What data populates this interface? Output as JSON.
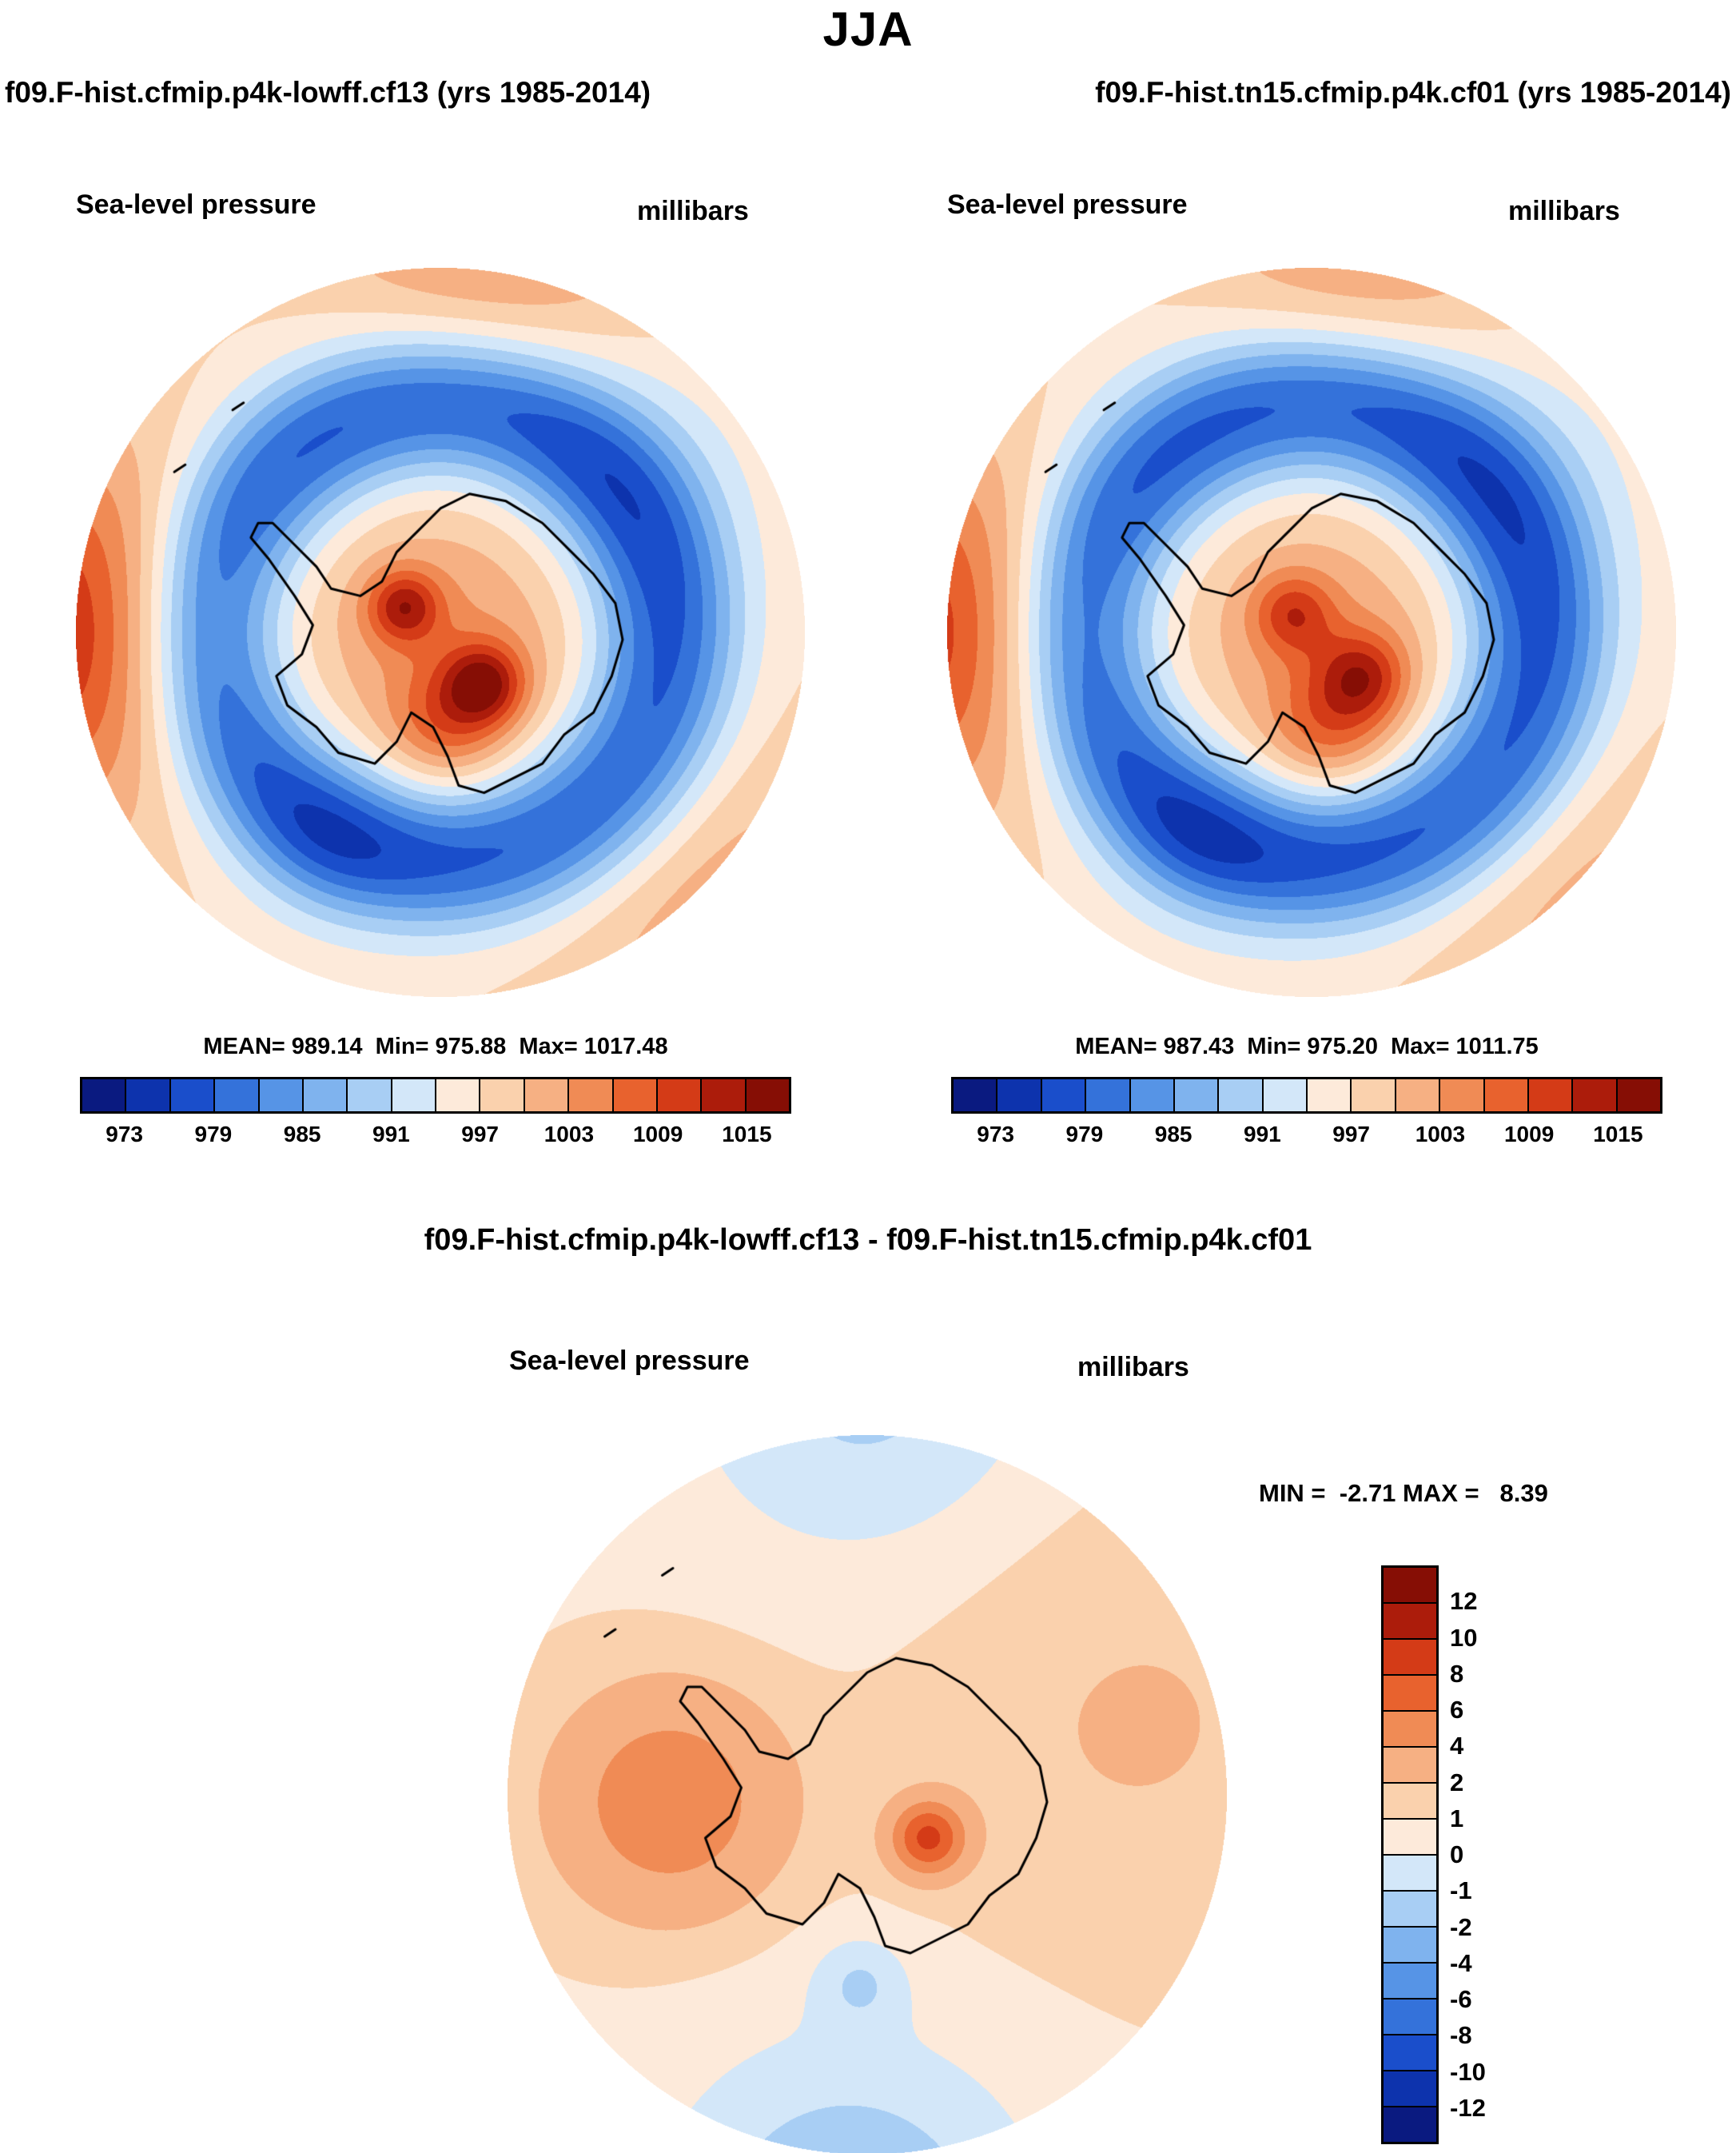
{
  "page": {
    "title": "JJA",
    "header_left": "f09.F-hist.cfmip.p4k-lowff.cf13 (yrs 1985-2014)",
    "header_right": "f09.F-hist.tn15.cfmip.p4k.cf01 (yrs 1985-2014)",
    "diff_title": "f09.F-hist.cfmip.p4k-lowff.cf13 - f09.F-hist.tn15.cfmip.p4k.cf01"
  },
  "chart_data": [
    {
      "type": "heatmap",
      "subtype": "south-polar-stereographic-contour-map",
      "title": "Sea-level pressure",
      "units": "millibars",
      "dataset": "f09.F-hist.cfmip.p4k-lowff.cf13",
      "years": "1985-2014",
      "stats": {
        "mean": 989.14,
        "min": 975.88,
        "max": 1017.48
      },
      "stats_label": "MEAN= 989.14  Min= 975.88  Max= 1017.48",
      "colorbar": {
        "orientation": "horizontal",
        "tick_labels": [
          "973",
          "979",
          "985",
          "991",
          "997",
          "1003",
          "1009",
          "1015"
        ],
        "levels": [
          970,
          973,
          976,
          979,
          982,
          985,
          988,
          991,
          994,
          997,
          1000,
          1003,
          1006,
          1009,
          1012,
          1015,
          1018
        ],
        "colors": [
          "#0a1a80",
          "#0d33ad",
          "#1a4ecb",
          "#3472da",
          "#5694e6",
          "#7fb3ee",
          "#a8cef4",
          "#d3e7f9",
          "#fdeada",
          "#fad1ad",
          "#f6b083",
          "#f08b55",
          "#e8622e",
          "#d43b17",
          "#ac1c0b",
          "#860e05"
        ]
      },
      "field_model": {
        "base": 997,
        "bumps": [
          {
            "kind": "ring",
            "r0": 0.62,
            "sigma": 0.2,
            "amp": -19
          },
          {
            "kind": "spot",
            "x": 0.02,
            "y": -0.02,
            "sigma": 0.38,
            "amp": 6
          },
          {
            "kind": "spot",
            "x": -0.1,
            "y": 0.07,
            "sigma": 0.1,
            "amp": 13
          },
          {
            "kind": "spot",
            "x": 0.12,
            "y": -0.14,
            "sigma": 0.11,
            "amp": 14
          },
          {
            "kind": "spot",
            "x": 0.02,
            "y": -0.25,
            "sigma": 0.16,
            "amp": 8
          },
          {
            "kind": "spot",
            "x": -1.2,
            "y": 0.0,
            "sigma": 0.5,
            "amp": 17
          },
          {
            "kind": "spot",
            "x": 0.15,
            "y": 1.15,
            "sigma": 0.45,
            "amp": 7
          },
          {
            "kind": "spot",
            "x": 0.9,
            "y": -0.9,
            "sigma": 0.5,
            "amp": 6
          },
          {
            "kind": "spot",
            "x": -0.3,
            "y": -0.55,
            "sigma": 0.22,
            "amp": -4
          },
          {
            "kind": "spot",
            "x": 0.55,
            "y": 0.45,
            "sigma": 0.35,
            "amp": -3
          }
        ]
      }
    },
    {
      "type": "heatmap",
      "subtype": "south-polar-stereographic-contour-map",
      "title": "Sea-level pressure",
      "units": "millibars",
      "dataset": "f09.F-hist.tn15.cfmip.p4k.cf01",
      "years": "1985-2014",
      "stats": {
        "mean": 987.43,
        "min": 975.2,
        "max": 1011.75
      },
      "stats_label": "MEAN= 987.43  Min= 975.20  Max= 1011.75",
      "colorbar": {
        "orientation": "horizontal",
        "tick_labels": [
          "973",
          "979",
          "985",
          "991",
          "997",
          "1003",
          "1009",
          "1015"
        ],
        "levels": [
          970,
          973,
          976,
          979,
          982,
          985,
          988,
          991,
          994,
          997,
          1000,
          1003,
          1006,
          1009,
          1012,
          1015,
          1018
        ],
        "colors": [
          "#0a1a80",
          "#0d33ad",
          "#1a4ecb",
          "#3472da",
          "#5694e6",
          "#7fb3ee",
          "#a8cef4",
          "#d3e7f9",
          "#fdeada",
          "#fad1ad",
          "#f6b083",
          "#f08b55",
          "#e8622e",
          "#d43b17",
          "#ac1c0b",
          "#860e05"
        ]
      },
      "field_model": {
        "base": 996.5,
        "bumps": [
          {
            "kind": "ring",
            "r0": 0.62,
            "sigma": 0.2,
            "amp": -19
          },
          {
            "kind": "spot",
            "x": 0.04,
            "y": -0.02,
            "sigma": 0.38,
            "amp": 6
          },
          {
            "kind": "spot",
            "x": -0.05,
            "y": 0.05,
            "sigma": 0.11,
            "amp": 10
          },
          {
            "kind": "spot",
            "x": 0.14,
            "y": -0.12,
            "sigma": 0.12,
            "amp": 11
          },
          {
            "kind": "spot",
            "x": 0.05,
            "y": -0.26,
            "sigma": 0.17,
            "amp": 8
          },
          {
            "kind": "spot",
            "x": -1.2,
            "y": 0.0,
            "sigma": 0.5,
            "amp": 16
          },
          {
            "kind": "spot",
            "x": 0.15,
            "y": 1.15,
            "sigma": 0.45,
            "amp": 7
          },
          {
            "kind": "spot",
            "x": 0.9,
            "y": -0.9,
            "sigma": 0.5,
            "amp": 6
          },
          {
            "kind": "spot",
            "x": -0.3,
            "y": -0.55,
            "sigma": 0.22,
            "amp": -4
          },
          {
            "kind": "spot",
            "x": 0.55,
            "y": 0.45,
            "sigma": 0.35,
            "amp": -3
          }
        ]
      }
    },
    {
      "type": "heatmap",
      "subtype": "south-polar-stereographic-contour-map-difference",
      "title": "Sea-level pressure",
      "units": "millibars",
      "dataset": "f09.F-hist.cfmip.p4k-lowff.cf13 - f09.F-hist.tn15.cfmip.p4k.cf01",
      "stats": {
        "min": -2.71,
        "max": 8.39
      },
      "stats_label": "MIN =  -2.71 MAX =   8.39",
      "colorbar": {
        "orientation": "vertical",
        "tick_labels": [
          "12",
          "10",
          "8",
          "6",
          "4",
          "2",
          "1",
          "0",
          "-1",
          "-2",
          "-4",
          "-6",
          "-8",
          "-10",
          "-12"
        ],
        "levels": [
          -14,
          -12,
          -10,
          -8,
          -6,
          -4,
          -2,
          -1,
          0,
          1,
          2,
          4,
          6,
          8,
          10,
          12,
          14
        ],
        "colors": [
          "#0a1a80",
          "#0d33ad",
          "#1a4ecb",
          "#3472da",
          "#5694e6",
          "#7fb3ee",
          "#a8cef4",
          "#d3e7f9",
          "#fdeada",
          "#fad1ad",
          "#f6b083",
          "#f08b55",
          "#e8622e",
          "#d43b17",
          "#ac1c0b",
          "#860e05"
        ]
      },
      "field_model": {
        "base": 0.9,
        "bumps": [
          {
            "kind": "spot",
            "x": -0.55,
            "y": -0.02,
            "sigma": 0.3,
            "amp": 4.8
          },
          {
            "kind": "spot",
            "x": 0.17,
            "y": -0.12,
            "sigma": 0.1,
            "amp": 7.5
          },
          {
            "kind": "spot",
            "x": 0.0,
            "y": 1.15,
            "sigma": 0.5,
            "amp": -2.2
          },
          {
            "kind": "spot",
            "x": -0.05,
            "y": -1.2,
            "sigma": 0.5,
            "amp": -3.0
          },
          {
            "kind": "spot",
            "x": -0.02,
            "y": -0.52,
            "sigma": 0.13,
            "amp": -1.7
          },
          {
            "kind": "spot",
            "x": 0.75,
            "y": 0.2,
            "sigma": 0.6,
            "amp": 1.2
          }
        ]
      }
    }
  ],
  "coastline": [
    [
      -0.5,
      0.3
    ],
    [
      -0.52,
      0.26
    ],
    [
      -0.47,
      0.2
    ],
    [
      -0.4,
      0.1
    ],
    [
      -0.35,
      0.02
    ],
    [
      -0.38,
      -0.06
    ],
    [
      -0.45,
      -0.12
    ],
    [
      -0.42,
      -0.2
    ],
    [
      -0.34,
      -0.26
    ],
    [
      -0.28,
      -0.33
    ],
    [
      -0.18,
      -0.36
    ],
    [
      -0.12,
      -0.3
    ],
    [
      -0.08,
      -0.22
    ],
    [
      -0.02,
      -0.26
    ],
    [
      0.02,
      -0.34
    ],
    [
      0.05,
      -0.42
    ],
    [
      0.12,
      -0.44
    ],
    [
      0.2,
      -0.4
    ],
    [
      0.28,
      -0.36
    ],
    [
      0.34,
      -0.28
    ],
    [
      0.42,
      -0.22
    ],
    [
      0.47,
      -0.12
    ],
    [
      0.5,
      -0.02
    ],
    [
      0.48,
      0.08
    ],
    [
      0.42,
      0.16
    ],
    [
      0.36,
      0.22
    ],
    [
      0.28,
      0.3
    ],
    [
      0.18,
      0.36
    ],
    [
      0.08,
      0.38
    ],
    [
      0.0,
      0.34
    ],
    [
      -0.06,
      0.28
    ],
    [
      -0.12,
      0.22
    ],
    [
      -0.16,
      0.14
    ],
    [
      -0.22,
      0.1
    ],
    [
      -0.3,
      0.12
    ],
    [
      -0.34,
      0.18
    ],
    [
      -0.4,
      0.24
    ],
    [
      -0.46,
      0.3
    ]
  ],
  "islands": [
    [
      [
        -0.57,
        0.61
      ],
      [
        -0.54,
        0.63
      ]
    ],
    [
      [
        -0.73,
        0.44
      ],
      [
        -0.7,
        0.46
      ]
    ]
  ]
}
